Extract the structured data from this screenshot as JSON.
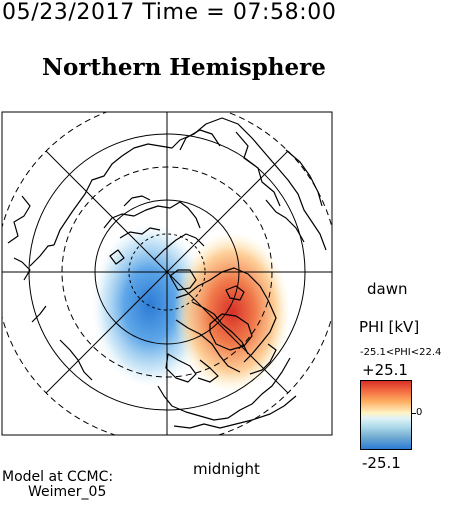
{
  "header": {
    "timestamp": "05/23/2017 Time = 07:58:00",
    "title": "Northern Hemisphere"
  },
  "map": {
    "dawn_label": "dawn",
    "midnight_label": "midnight"
  },
  "colorbar": {
    "title": "PHI [kV]",
    "range_text": "-25.1<PHI<22.4",
    "max_label": "+25.1",
    "min_label": "-25.1",
    "zero_label": "0",
    "colors": {
      "positive": "#d73027",
      "neutral": "#fff3c4",
      "negative": "#2c7bd6"
    }
  },
  "credit": {
    "line1": "Model at CCMC:",
    "line2": "Weimer_05"
  }
}
